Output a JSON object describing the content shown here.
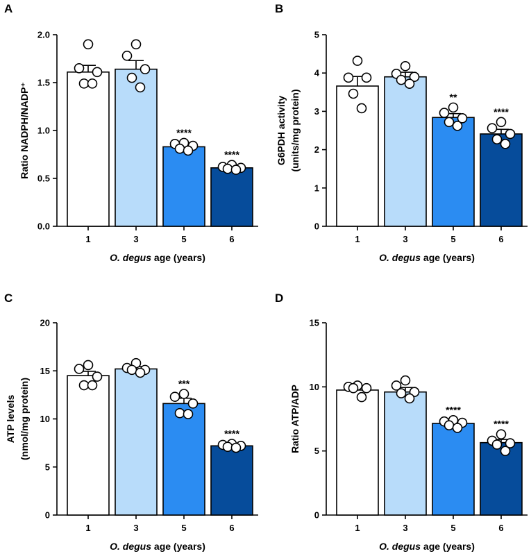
{
  "figure": {
    "colors": {
      "1": "#ffffff",
      "3": "#b8dcfa",
      "5": "#2b8cf2",
      "6": "#064c9b"
    }
  },
  "chart_data": [
    {
      "panel": "A",
      "type": "bar",
      "ylabel_lines": [
        "Ratio NADPH/NADP⁺"
      ],
      "xlabel_italic": "O. degus",
      "xlabel_rest": " age (years)",
      "categories": [
        "1",
        "3",
        "5",
        "6"
      ],
      "values": [
        1.61,
        1.64,
        0.83,
        0.61
      ],
      "sem": [
        0.07,
        0.09,
        0.03,
        0.02
      ],
      "points": [
        [
          1.9,
          1.65,
          1.61,
          1.49,
          1.49
        ],
        [
          1.9,
          1.78,
          1.64,
          1.55,
          1.45
        ],
        [
          0.87,
          0.86,
          0.84,
          0.81,
          0.79
        ],
        [
          0.64,
          0.62,
          0.61,
          0.6,
          0.59
        ]
      ],
      "significance": [
        "",
        "",
        "****",
        "****"
      ],
      "ylim": [
        0,
        2.0
      ],
      "yticks": [
        "0.0",
        "0.5",
        "1.0",
        "1.5",
        "2.0"
      ]
    },
    {
      "panel": "B",
      "type": "bar",
      "ylabel_lines": [
        "G6PDH activity",
        "(units/mg protein)"
      ],
      "xlabel_italic": "O. degus",
      "xlabel_rest": " age (years)",
      "categories": [
        "1",
        "3",
        "5",
        "6"
      ],
      "values": [
        3.66,
        3.9,
        2.84,
        2.41
      ],
      "sem": [
        0.25,
        0.12,
        0.1,
        0.12
      ],
      "points": [
        [
          4.32,
          3.88,
          3.88,
          3.46,
          3.08
        ],
        [
          4.18,
          3.98,
          3.9,
          3.82,
          3.72
        ],
        [
          3.1,
          2.96,
          2.82,
          2.72,
          2.62
        ],
        [
          2.72,
          2.56,
          2.41,
          2.27,
          2.15
        ]
      ],
      "significance": [
        "",
        "",
        "**",
        "****"
      ],
      "ylim": [
        0,
        5
      ],
      "yticks": [
        "0",
        "1",
        "2",
        "3",
        "4",
        "5"
      ]
    },
    {
      "panel": "C",
      "type": "bar",
      "ylabel_lines": [
        "ATP levels",
        "(nmol/mg protein)"
      ],
      "xlabel_italic": "O. degus",
      "xlabel_rest": " age (years)",
      "categories": [
        "1",
        "3",
        "5",
        "6"
      ],
      "values": [
        14.5,
        15.2,
        11.6,
        7.2
      ],
      "sem": [
        0.45,
        0.25,
        0.55,
        0.15
      ],
      "points": [
        [
          15.6,
          15.2,
          14.4,
          13.5,
          13.5
        ],
        [
          15.8,
          15.3,
          15.1,
          15.1,
          14.8
        ],
        [
          12.6,
          12.3,
          11.6,
          10.6,
          10.5
        ],
        [
          7.4,
          7.3,
          7.2,
          7.1,
          7.0
        ]
      ],
      "significance": [
        "",
        "",
        "***",
        "****"
      ],
      "ylim": [
        0,
        20
      ],
      "yticks": [
        "0",
        "5",
        "10",
        "15",
        "20"
      ]
    },
    {
      "panel": "D",
      "type": "bar",
      "ylabel_lines": [
        "Ratio ATP/ADP"
      ],
      "xlabel_italic": "O. degus",
      "xlabel_rest": " age (years)",
      "categories": [
        "1",
        "3",
        "5",
        "6"
      ],
      "values": [
        9.75,
        9.6,
        7.15,
        5.65
      ],
      "sem": [
        0.3,
        0.35,
        0.2,
        0.25
      ],
      "points": [
        [
          10.1,
          10.0,
          9.9,
          9.9,
          9.2
        ],
        [
          10.5,
          10.1,
          9.6,
          9.5,
          9.1
        ],
        [
          7.4,
          7.3,
          7.2,
          7.0,
          6.8
        ],
        [
          6.3,
          5.8,
          5.6,
          5.5,
          5.0
        ]
      ],
      "significance": [
        "",
        "",
        "****",
        "****"
      ],
      "ylim": [
        0,
        15
      ],
      "yticks": [
        "0",
        "5",
        "10",
        "15"
      ]
    }
  ]
}
